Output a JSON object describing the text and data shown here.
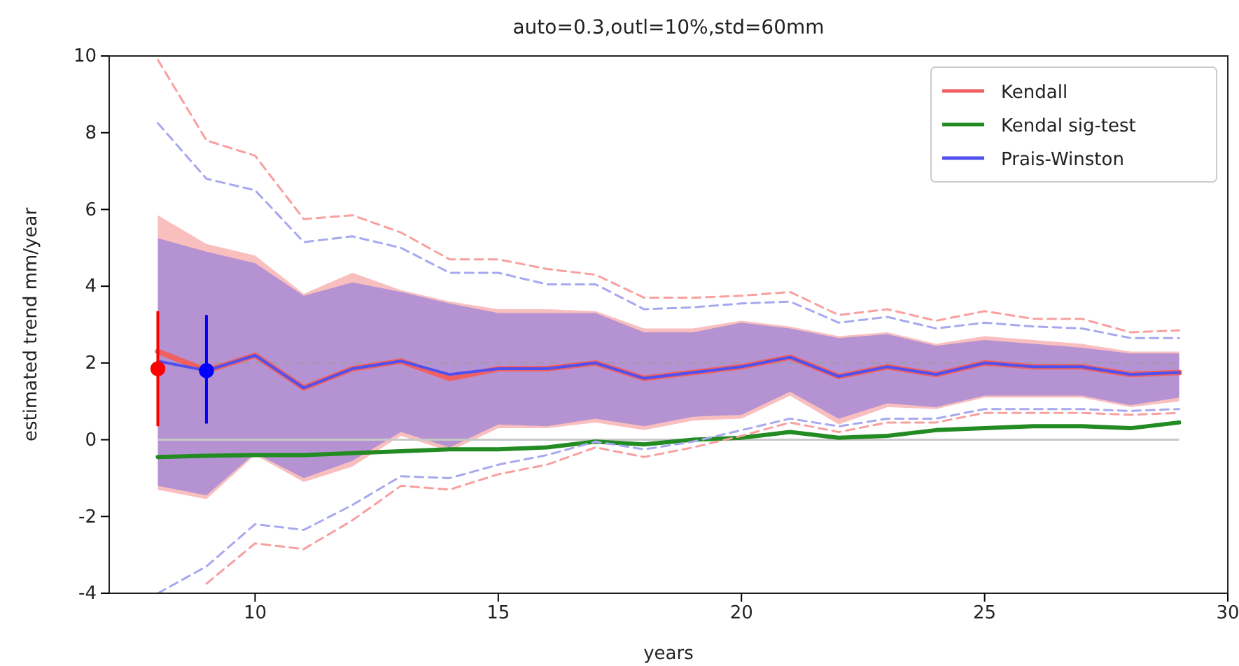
{
  "chart_data": {
    "type": "line",
    "title": "auto=0.3,outl=10%,std=60mm",
    "xlabel": "years",
    "ylabel": "estimated trend mm/year",
    "x": [
      8,
      9,
      10,
      11,
      12,
      13,
      14,
      15,
      16,
      17,
      18,
      19,
      20,
      21,
      22,
      23,
      24,
      25,
      26,
      27,
      28,
      29
    ],
    "xlim": [
      7,
      30
    ],
    "xticks": [
      10,
      15,
      20,
      25,
      30
    ],
    "ylim": [
      -4,
      10
    ],
    "yticks": [
      -4,
      -2,
      0,
      2,
      4,
      6,
      8,
      10
    ],
    "grid": false,
    "legend": "top right",
    "ref_lines": [
      {
        "axis": "y",
        "value": 0,
        "color": "#c8c8c8",
        "line_style": "solid"
      },
      {
        "axis": "y",
        "value": 2,
        "color": "#a898b8",
        "line_style": "dashed"
      }
    ],
    "series": [
      {
        "name": "Kendall",
        "color": "#f06060",
        "line_style": "solid",
        "values": [
          2.3,
          1.8,
          2.2,
          1.35,
          1.85,
          2.05,
          1.6,
          1.85,
          1.85,
          2.0,
          1.6,
          1.75,
          1.9,
          2.15,
          1.65,
          1.9,
          1.7,
          2.0,
          1.9,
          1.9,
          1.7,
          1.75
        ],
        "lower": [
          -1.3,
          -1.55,
          -0.4,
          -1.1,
          -0.7,
          0.1,
          -0.3,
          0.3,
          0.3,
          0.45,
          0.25,
          0.5,
          0.55,
          1.15,
          0.4,
          0.85,
          0.8,
          1.1,
          1.1,
          1.1,
          0.85,
          1.0
        ],
        "upper": [
          5.85,
          5.1,
          4.8,
          3.8,
          4.35,
          3.9,
          3.6,
          3.4,
          3.4,
          3.35,
          2.9,
          2.9,
          3.1,
          2.95,
          2.7,
          2.8,
          2.5,
          2.7,
          2.6,
          2.5,
          2.3,
          2.3
        ]
      },
      {
        "name": "Kendal sig-test",
        "color": "#228b22",
        "line_style": "solid",
        "values": [
          -0.45,
          -0.42,
          -0.4,
          -0.4,
          -0.35,
          -0.3,
          -0.25,
          -0.25,
          -0.2,
          -0.05,
          -0.12,
          0.0,
          0.05,
          0.2,
          0.05,
          0.1,
          0.25,
          0.3,
          0.35,
          0.35,
          0.3,
          0.45
        ]
      },
      {
        "name": "Prais-Winston",
        "color": "#5050f0",
        "line_style": "solid",
        "values": [
          2.05,
          1.8,
          2.2,
          1.35,
          1.85,
          2.05,
          1.7,
          1.85,
          1.85,
          2.0,
          1.6,
          1.75,
          1.9,
          2.15,
          1.65,
          1.9,
          1.7,
          2.0,
          1.9,
          1.9,
          1.7,
          1.75
        ],
        "lower": [
          -1.2,
          -1.45,
          -0.35,
          -1.0,
          -0.55,
          0.2,
          -0.2,
          0.4,
          0.35,
          0.55,
          0.35,
          0.6,
          0.65,
          1.25,
          0.55,
          0.95,
          0.85,
          1.15,
          1.15,
          1.15,
          0.9,
          1.1
        ],
        "upper": [
          5.25,
          4.9,
          4.6,
          3.75,
          4.1,
          3.85,
          3.55,
          3.3,
          3.3,
          3.3,
          2.8,
          2.8,
          3.05,
          2.9,
          2.65,
          2.75,
          2.45,
          2.6,
          2.5,
          2.4,
          2.25,
          2.25
        ]
      },
      {
        "color": "#f8a0a0",
        "line_style": "dashed",
        "values": [
          9.9,
          7.8,
          7.4,
          5.75,
          5.85,
          5.4,
          4.7,
          4.7,
          4.45,
          4.3,
          3.7,
          3.7,
          3.75,
          3.85,
          3.25,
          3.4,
          3.1,
          3.35,
          3.15,
          3.15,
          2.8,
          2.85
        ]
      },
      {
        "color": "#f8a0a0",
        "line_style": "dashed",
        "values": [
          null,
          -3.75,
          -2.7,
          -2.85,
          -2.1,
          -1.2,
          -1.3,
          -0.9,
          -0.65,
          -0.2,
          -0.45,
          -0.2,
          0.1,
          0.45,
          0.2,
          0.45,
          0.45,
          0.7,
          0.7,
          0.7,
          0.65,
          0.7
        ]
      },
      {
        "color": "#a8a8f0",
        "line_style": "dashed",
        "values": [
          8.25,
          6.8,
          6.5,
          5.15,
          5.3,
          5.0,
          4.35,
          4.35,
          4.05,
          4.05,
          3.4,
          3.45,
          3.55,
          3.6,
          3.05,
          3.2,
          2.9,
          3.05,
          2.95,
          2.9,
          2.65,
          2.65
        ]
      },
      {
        "color": "#a8a8f0",
        "line_style": "dashed",
        "values": [
          -4.0,
          -3.3,
          -2.2,
          -2.35,
          -1.7,
          -0.95,
          -1.0,
          -0.65,
          -0.4,
          -0.05,
          -0.25,
          -0.05,
          0.25,
          0.55,
          0.35,
          0.55,
          0.55,
          0.8,
          0.8,
          0.8,
          0.75,
          0.8
        ]
      },
      {
        "type": "scatter",
        "color": "#ff0000",
        "marker": "circle",
        "x": [
          8
        ],
        "values": [
          1.85
        ],
        "errors": [
          [
            0.35,
            3.35
          ]
        ]
      },
      {
        "type": "scatter",
        "color": "#0000ff",
        "marker": "circle",
        "x": [
          9
        ],
        "values": [
          1.8
        ],
        "errors": [
          [
            0.42,
            3.25
          ]
        ]
      }
    ]
  }
}
